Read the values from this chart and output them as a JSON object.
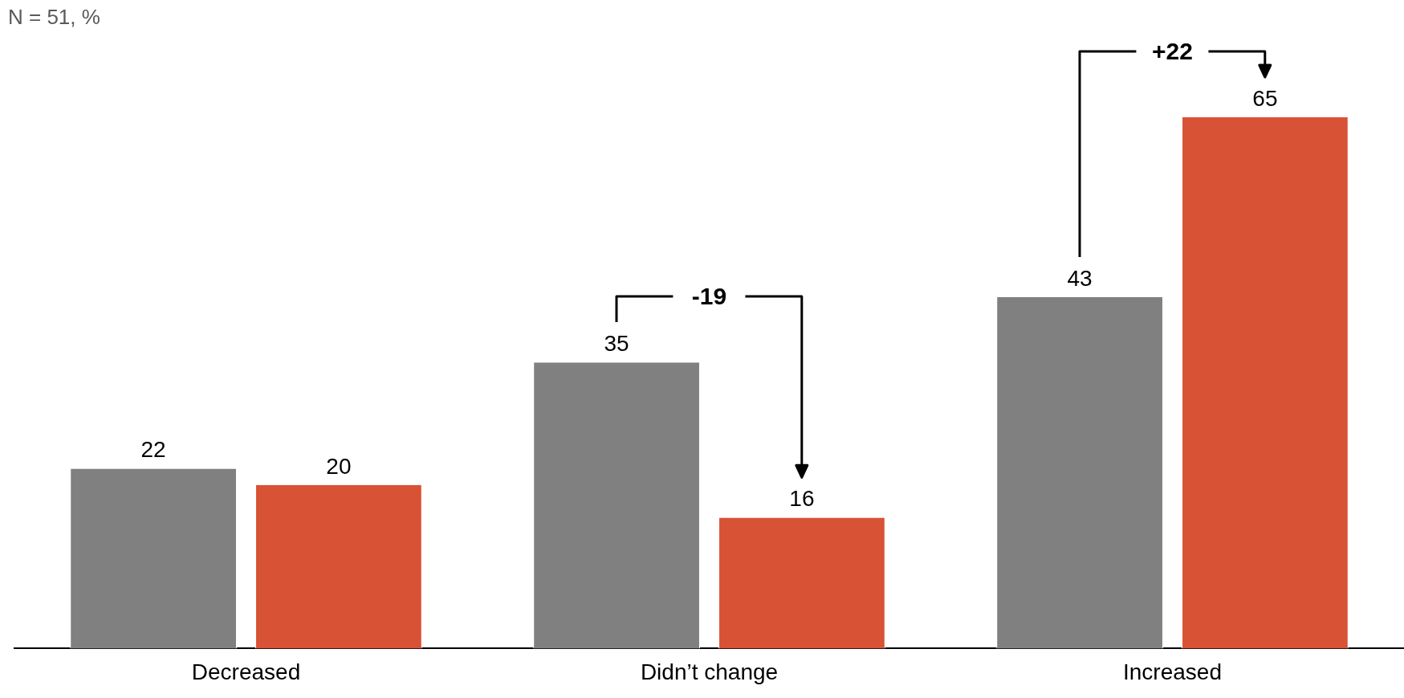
{
  "chart_data": {
    "type": "bar",
    "subtitle": "N = 51, %",
    "categories": [
      "Decreased",
      "Didn’t change",
      "Increased"
    ],
    "series": [
      {
        "color": "#808080",
        "values": [
          22,
          35,
          43
        ]
      },
      {
        "color": "#d85236",
        "values": [
          20,
          16,
          65
        ]
      }
    ],
    "tick_labels": "x",
    "grid": false,
    "legend": false,
    "data_labels": true,
    "annotations": [
      "-19",
      "+22"
    ]
  }
}
